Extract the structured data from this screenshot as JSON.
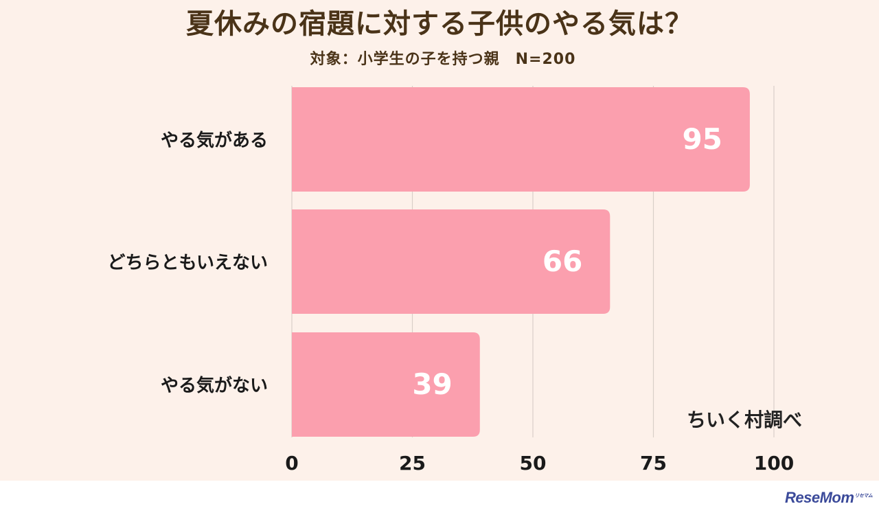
{
  "title": "夏休みの宿題に対する子供のやる気は？",
  "subtitle": "対象：小学生の子を持つ親　N=200",
  "source": "ちいく村調べ",
  "watermark": "ReseMom",
  "watermark_sub": "リセマム",
  "colors": {
    "background": "#fdf1ea",
    "bar": "#fb9fae",
    "grid": "#d9cfc9",
    "text": "#4a3318",
    "value_label": "#ffffff"
  },
  "chart_data": {
    "type": "bar",
    "orientation": "horizontal",
    "categories": [
      "やる気がある",
      "どちらともいえない",
      "やる気がない"
    ],
    "values": [
      95,
      66,
      39
    ],
    "xlim": [
      0,
      100
    ],
    "xticks": [
      0,
      25,
      50,
      75,
      100
    ],
    "grid": true,
    "title": "夏休みの宿題に対する子供のやる気は？",
    "subtitle": "対象：小学生の子を持つ親　N=200",
    "xlabel": "",
    "ylabel": ""
  }
}
